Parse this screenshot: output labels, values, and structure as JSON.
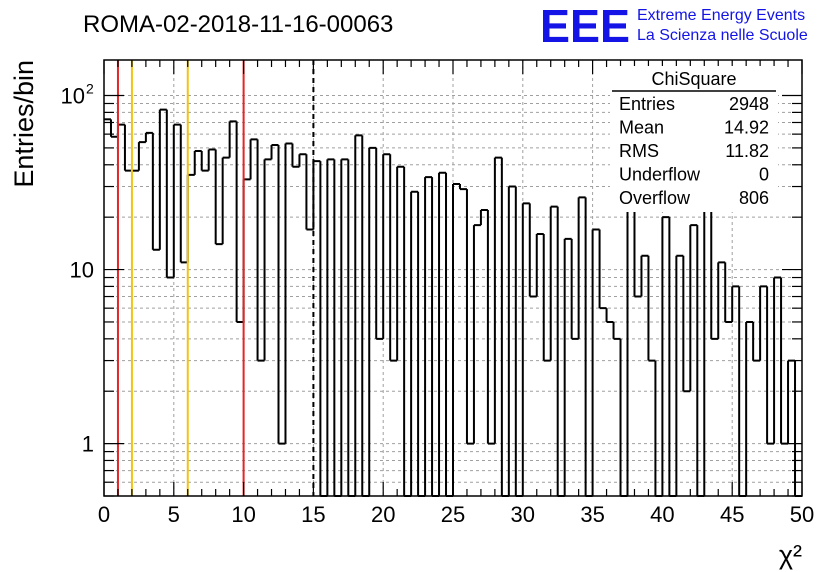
{
  "header": {
    "run_title": "ROMA-02-2018-11-16-00063",
    "logo_text": "EEE",
    "logo_line1": "Extreme Energy Events",
    "logo_line2": "La Scienza nelle Scuole",
    "logo_color": "#1414e6"
  },
  "stats_box": {
    "title": "ChiSquare",
    "rows": [
      {
        "label": "Entries",
        "value": "2948"
      },
      {
        "label": "Mean",
        "value": "14.92"
      },
      {
        "label": "RMS",
        "value": "11.82"
      },
      {
        "label": "Underflow",
        "value": "0"
      },
      {
        "label": "Overflow",
        "value": "806"
      }
    ]
  },
  "chart_data": {
    "type": "bar",
    "histogram_style": "step",
    "xlabel": "χ²",
    "ylabel": "Entries/bin",
    "xlim": [
      0,
      50
    ],
    "ylim": [
      0.5,
      160
    ],
    "yscale": "log",
    "bin_width": 0.5,
    "x_ticks": [
      "0",
      "5",
      "10",
      "15",
      "20",
      "25",
      "30",
      "35",
      "40",
      "45",
      "50"
    ],
    "y_ticks": [
      {
        "value": 1,
        "label": "1"
      },
      {
        "value": 10,
        "label": "10"
      },
      {
        "value": 100,
        "label": "10",
        "exponent": "2"
      }
    ],
    "grid": true,
    "values": [
      73,
      58,
      68,
      37,
      37,
      54,
      61,
      13,
      83,
      9,
      68,
      11,
      35,
      48,
      37,
      49,
      14,
      44,
      71,
      5,
      33,
      56,
      3,
      43,
      52,
      1,
      53,
      39,
      46,
      17,
      42,
      0,
      43,
      0,
      43,
      0,
      59,
      0,
      50,
      4,
      46,
      3,
      39,
      0,
      28,
      0,
      34,
      0,
      36,
      0,
      31,
      29,
      1,
      18,
      22,
      1,
      44,
      0,
      30,
      0,
      24,
      7,
      16,
      3,
      23,
      0,
      15,
      4,
      26,
      0,
      17,
      6,
      5,
      4,
      0,
      27,
      7,
      12,
      3,
      0,
      20,
      0,
      12,
      2,
      18,
      0,
      23,
      4,
      11,
      5,
      8,
      0,
      5,
      3,
      8,
      1,
      9,
      1,
      3,
      0
    ],
    "reference_lines": [
      {
        "x": 1,
        "color": "#e32626",
        "style": "solid"
      },
      {
        "x": 2,
        "color": "#f2c314",
        "style": "solid"
      },
      {
        "x": 6,
        "color": "#f2c314",
        "style": "solid"
      },
      {
        "x": 10,
        "color": "#e32626",
        "style": "solid"
      },
      {
        "x": 15,
        "color": "#000000",
        "style": "dashed"
      }
    ]
  }
}
